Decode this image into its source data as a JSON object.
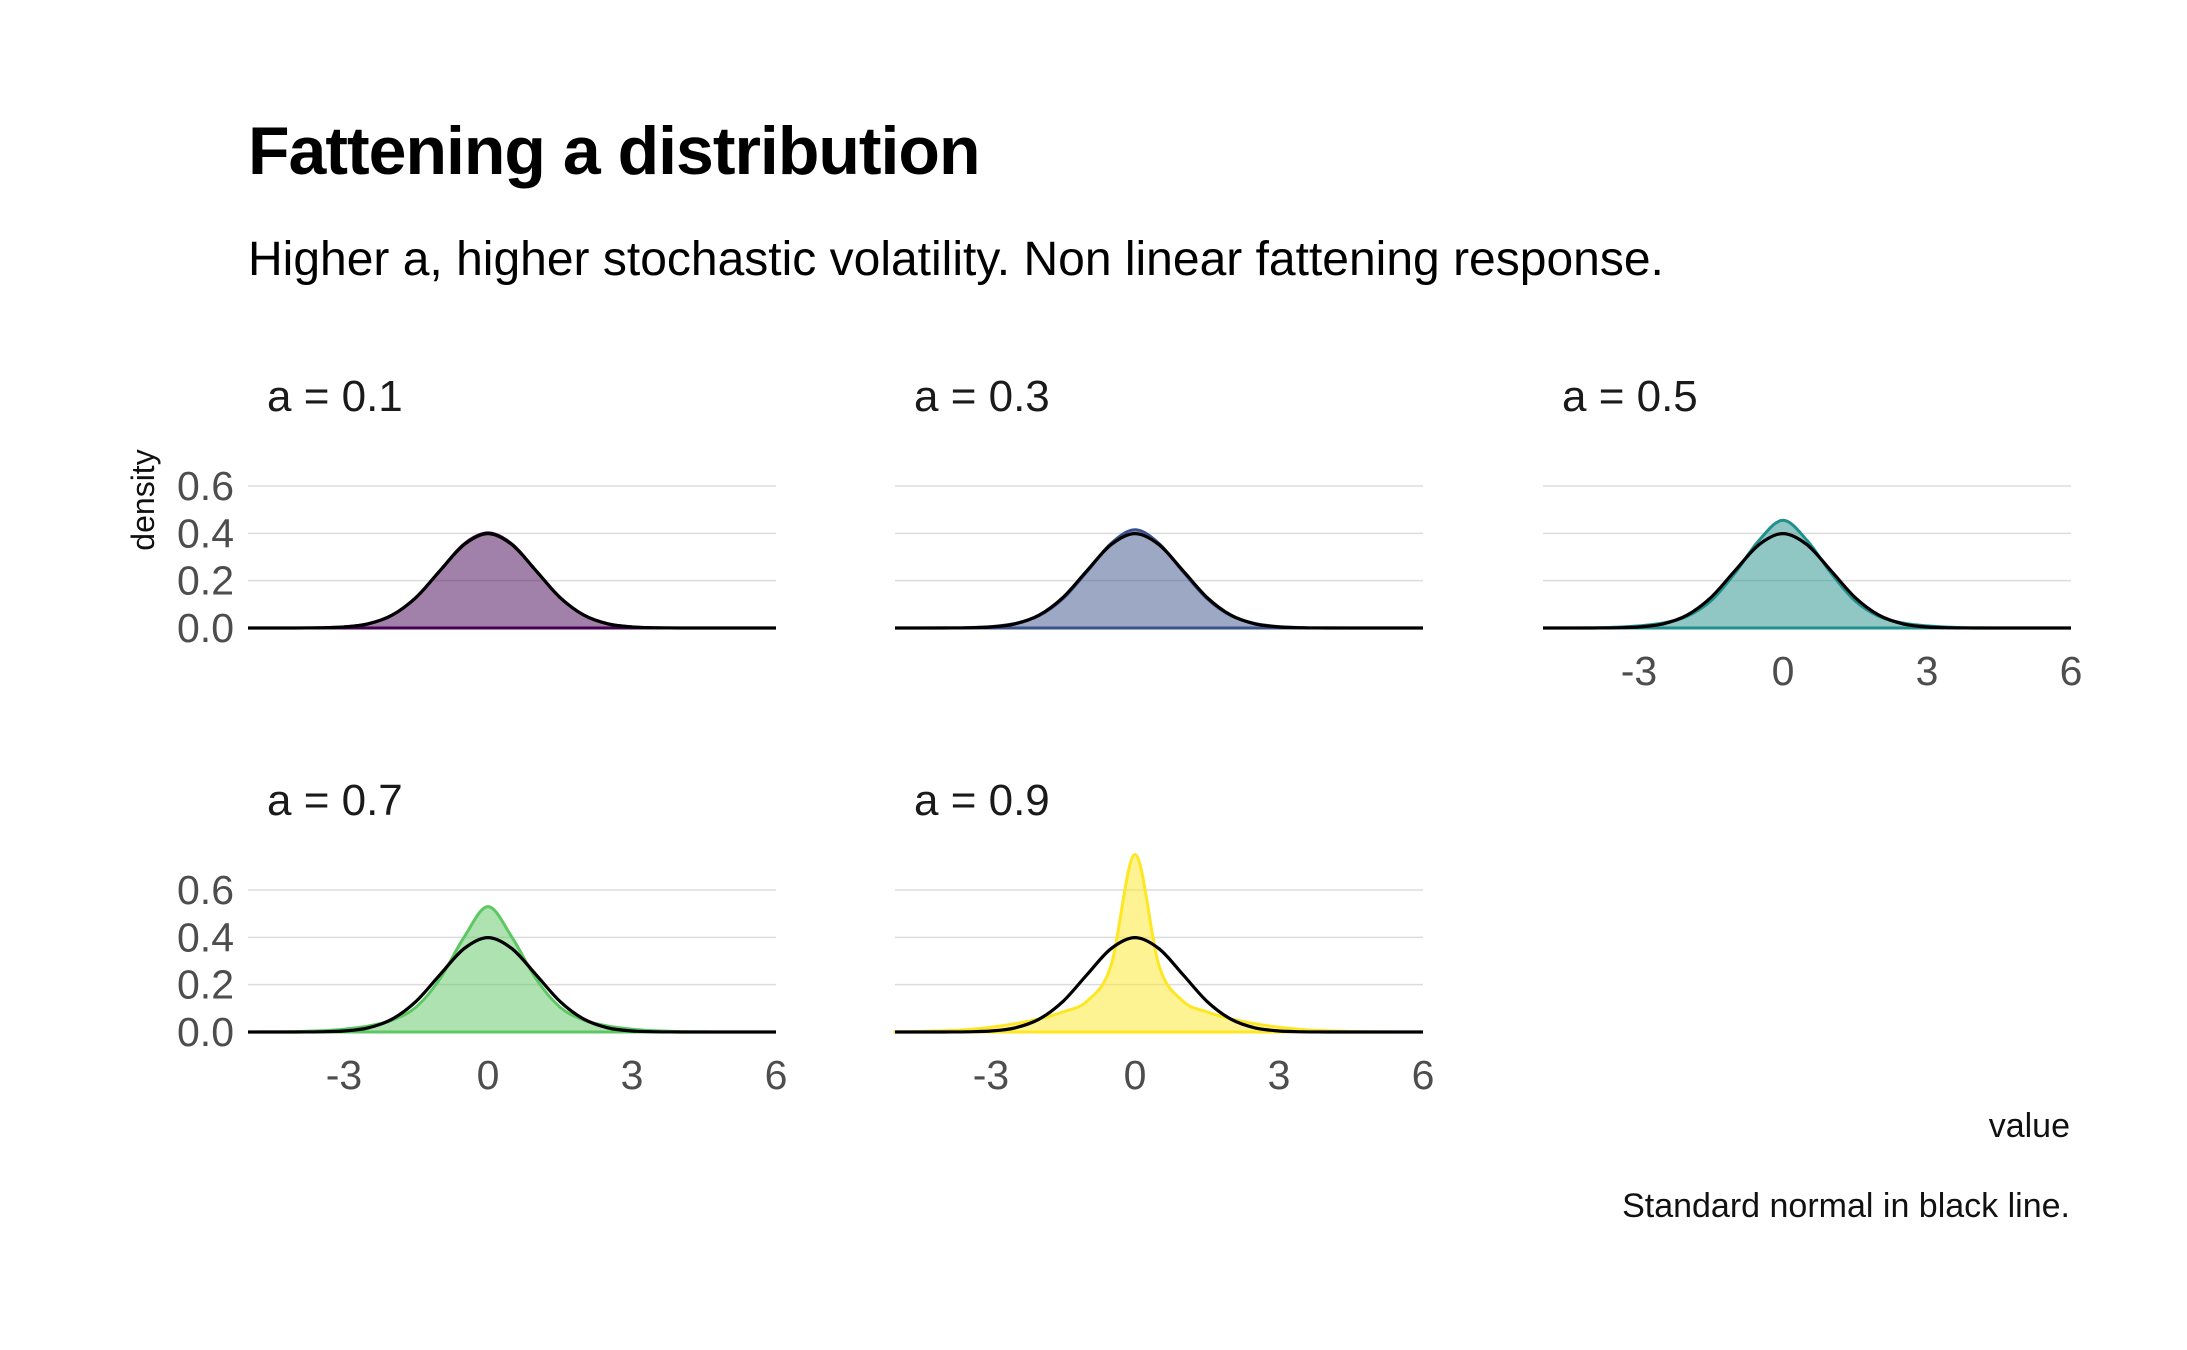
{
  "chart_data": {
    "type": "area",
    "title": "Fattening a distribution",
    "subtitle": "Higher a, higher stochastic volatility. Non linear fattening response.",
    "xlabel": "value",
    "ylabel": "density",
    "caption": "Standard normal in black line.",
    "xlim": [
      -5,
      6
    ],
    "ylim": [
      0,
      0.6
    ],
    "x_ticks": [
      -3,
      0,
      3,
      6
    ],
    "y_ticks": [
      0.0,
      0.2,
      0.4,
      0.6
    ],
    "y_tick_labels": [
      "0.0",
      "0.2",
      "0.4",
      "0.6"
    ],
    "grid": true,
    "reference_line": "standard normal density",
    "x": [
      -5,
      -4.5,
      -4,
      -3.5,
      -3,
      -2.5,
      -2,
      -1.5,
      -1,
      -0.5,
      0,
      0.5,
      1,
      1.5,
      2,
      2.5,
      3,
      3.5,
      4,
      4.5,
      5,
      5.5,
      6
    ],
    "normal": [
      0.0,
      0.0,
      0.0001,
      0.0009,
      0.0044,
      0.0175,
      0.054,
      0.1295,
      0.242,
      0.3521,
      0.3989,
      0.3521,
      0.242,
      0.1295,
      0.054,
      0.0175,
      0.0044,
      0.0009,
      0.0001,
      0.0,
      0.0,
      0.0,
      0.0
    ],
    "series": [
      {
        "name": "a = 0.1",
        "color": "#440154",
        "values": [
          0.0,
          0.0,
          0.0002,
          0.001,
          0.0048,
          0.018,
          0.054,
          0.128,
          0.242,
          0.355,
          0.402,
          0.355,
          0.242,
          0.128,
          0.054,
          0.018,
          0.0048,
          0.001,
          0.0002,
          0.0,
          0.0,
          0.0,
          0.0
        ]
      },
      {
        "name": "a = 0.3",
        "color": "#3b528b",
        "values": [
          0.0,
          0.0,
          0.0003,
          0.0015,
          0.006,
          0.019,
          0.052,
          0.124,
          0.238,
          0.357,
          0.415,
          0.357,
          0.238,
          0.124,
          0.052,
          0.019,
          0.006,
          0.0015,
          0.0003,
          0.0,
          0.0,
          0.0,
          0.0
        ]
      },
      {
        "name": "a = 0.5",
        "color": "#21908c",
        "values": [
          0.0,
          0.0001,
          0.0006,
          0.003,
          0.009,
          0.021,
          0.049,
          0.115,
          0.232,
          0.37,
          0.455,
          0.37,
          0.232,
          0.115,
          0.049,
          0.021,
          0.009,
          0.003,
          0.0006,
          0.0001,
          0.0,
          0.0,
          0.0
        ]
      },
      {
        "name": "a = 0.7",
        "color": "#5dc863",
        "values": [
          0.0001,
          0.0005,
          0.0015,
          0.005,
          0.012,
          0.025,
          0.05,
          0.105,
          0.225,
          0.4,
          0.53,
          0.4,
          0.225,
          0.105,
          0.05,
          0.025,
          0.012,
          0.005,
          0.0015,
          0.0005,
          0.0001,
          0.0,
          0.0
        ]
      },
      {
        "name": "a = 0.9",
        "color": "#fde725",
        "values": [
          0.0005,
          0.002,
          0.005,
          0.01,
          0.02,
          0.035,
          0.055,
          0.085,
          0.13,
          0.28,
          0.75,
          0.28,
          0.13,
          0.085,
          0.055,
          0.035,
          0.02,
          0.01,
          0.005,
          0.002,
          0.0005,
          0.0001,
          0.0
        ]
      }
    ]
  }
}
